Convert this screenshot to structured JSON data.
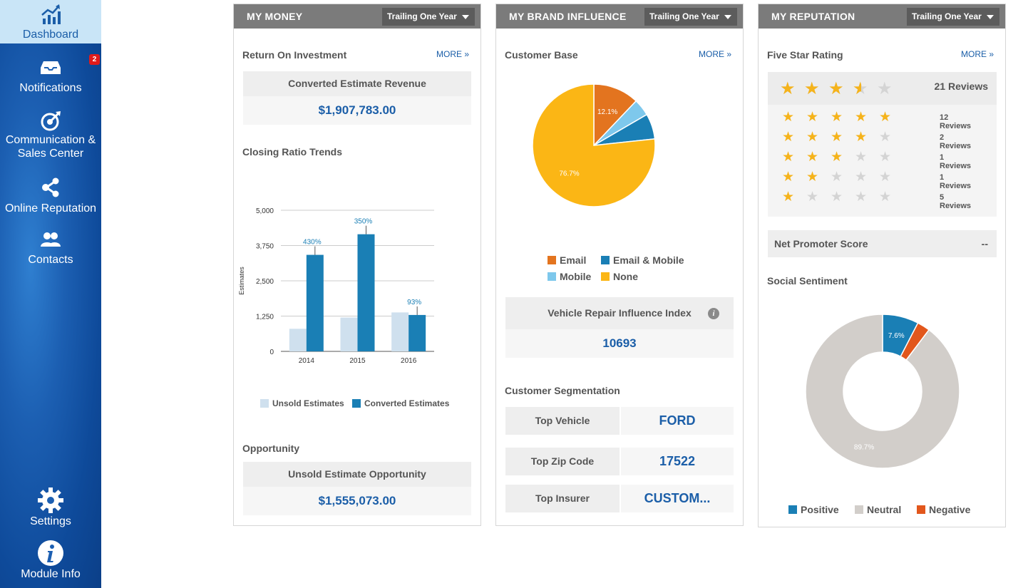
{
  "sidebar": {
    "items": [
      {
        "label": "Dashboard",
        "icon": "chart-trend-icon"
      },
      {
        "label": "Notifications",
        "icon": "inbox-icon",
        "badge": "2"
      },
      {
        "label_line1": "Communication &",
        "label_line2": "Sales Center",
        "icon": "target-icon"
      },
      {
        "label": "Online Reputation",
        "icon": "share-icon"
      },
      {
        "label": "Contacts",
        "icon": "people-icon"
      },
      {
        "label": "Settings",
        "icon": "gear-icon"
      },
      {
        "label": "Module Info",
        "icon": "info-icon"
      }
    ]
  },
  "money": {
    "title": "MY MONEY",
    "period": "Trailing One Year",
    "roi_title": "Return On Investment",
    "more": "MORE",
    "converted_label": "Converted Estimate Revenue",
    "converted_value": "$1,907,783.00",
    "trends_title": "Closing Ratio Trends",
    "opportunity_title": "Opportunity",
    "unsold_label": "Unsold Estimate Opportunity",
    "unsold_value": "$1,555,073.00"
  },
  "brand": {
    "title": "MY BRAND INFLUENCE",
    "period": "Trailing One Year",
    "customer_base_title": "Customer Base",
    "more": "MORE",
    "legend": [
      "Email",
      "Email & Mobile",
      "Mobile",
      "None"
    ],
    "vrii_label": "Vehicle Repair Influence Index",
    "vrii_value": "10693",
    "segmentation_title": "Customer Segmentation",
    "segments": [
      {
        "label": "Top Vehicle",
        "value": "FORD"
      },
      {
        "label": "Top Zip Code",
        "value": "17522"
      },
      {
        "label": "Top Insurer",
        "value": "CUSTOM..."
      }
    ]
  },
  "reputation": {
    "title": "MY REPUTATION",
    "period": "Trailing One Year",
    "five_star_title": "Five Star Rating",
    "more": "MORE",
    "total_reviews": "21 Reviews",
    "average_stars": 3.5,
    "rows": [
      {
        "stars": 5,
        "label": "12 Reviews"
      },
      {
        "stars": 4,
        "label": "2 Reviews"
      },
      {
        "stars": 3,
        "label": "1 Reviews"
      },
      {
        "stars": 2,
        "label": "1 Reviews"
      },
      {
        "stars": 1,
        "label": "5 Reviews"
      }
    ],
    "nps_label": "Net Promoter Score",
    "nps_value": "--",
    "sentiment_title": "Social Sentiment",
    "sentiment_legend": [
      "Positive",
      "Neutral",
      "Negative"
    ]
  },
  "chart_data": [
    {
      "type": "bar",
      "ylabel": "Estimates",
      "categories": [
        "2014",
        "2015",
        "2016"
      ],
      "ylim": [
        0,
        5000
      ],
      "yticks": [
        "0",
        "1,250",
        "2,500",
        "3,750",
        "5,000"
      ],
      "series": [
        {
          "name": "Unsold Estimates",
          "color": "#cfe0ee",
          "values": [
            800,
            1200,
            1380
          ]
        },
        {
          "name": "Converted Estimates",
          "color": "#1a7fb5",
          "values": [
            3420,
            4150,
            1290
          ]
        }
      ],
      "annotations": [
        "430%",
        "350%",
        "93%"
      ]
    },
    {
      "type": "pie",
      "slices": [
        {
          "name": "Email",
          "value": 12.1,
          "label": "12.1%",
          "color": "#e3741f"
        },
        {
          "name": "Mobile",
          "value": 4.5,
          "label": "",
          "color": "#7ec8ec"
        },
        {
          "name": "Email & Mobile",
          "value": 6.7,
          "label": "",
          "color": "#1a7fb5"
        },
        {
          "name": "None",
          "value": 76.7,
          "label": "76.7%",
          "color": "#fbb615"
        }
      ]
    },
    {
      "type": "pie",
      "donut": true,
      "slices": [
        {
          "name": "Positive",
          "value": 7.6,
          "label": "7.6%",
          "color": "#1a7fb5"
        },
        {
          "name": "Negative",
          "value": 2.7,
          "label": "",
          "color": "#e2571c"
        },
        {
          "name": "Neutral",
          "value": 89.7,
          "label": "89.7%",
          "color": "#d2ceca"
        }
      ]
    }
  ]
}
